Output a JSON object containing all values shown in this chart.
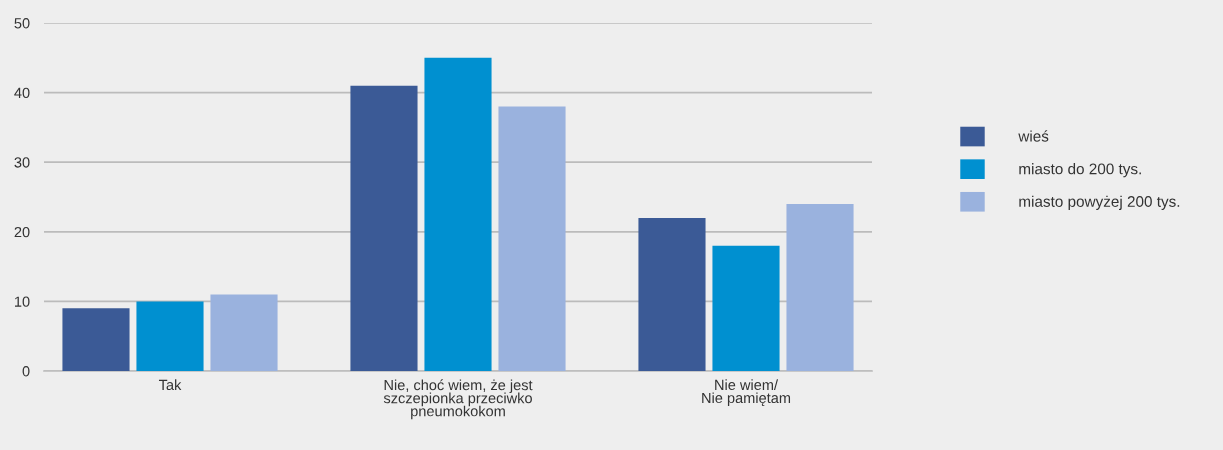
{
  "chart_data": {
    "type": "bar",
    "categories": [
      "Tak",
      "Nie, choć wiem, że jest\nszczepionka przeciwko\npneumokokom",
      "Nie wiem/\nNie pamiętam"
    ],
    "series": [
      {
        "name": "wieś",
        "color": "#3b5a96",
        "values": [
          9,
          41,
          22
        ]
      },
      {
        "name": "miasto do 200 tys.",
        "color": "#0090d0",
        "values": [
          10,
          45,
          18
        ]
      },
      {
        "name": "miasto powyżej 200 tys.",
        "color": "#9ab2de",
        "values": [
          11,
          38,
          24
        ]
      }
    ],
    "ylim": [
      0,
      50
    ],
    "yticks": [
      0,
      10,
      20,
      30,
      40,
      50
    ],
    "grid": "y",
    "legend": "right"
  }
}
